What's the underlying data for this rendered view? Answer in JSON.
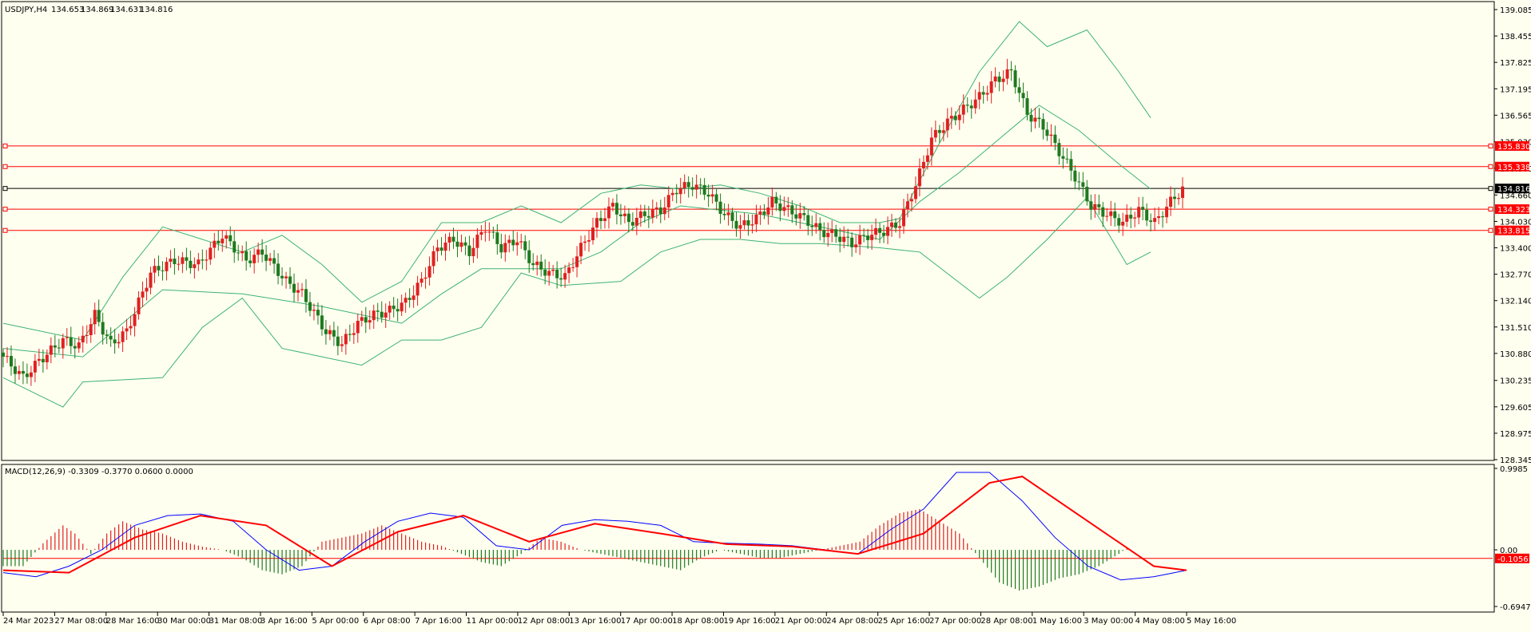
{
  "chart_data": [
    {
      "type": "candlestick",
      "title": "USDJPY,H4",
      "ohlc_readout": [
        "134.653",
        "134.869",
        "134.631",
        "134.816"
      ],
      "y_ticks": [
        "139.085",
        "138.455",
        "137.825",
        "137.195",
        "136.565",
        "135.930",
        "135.300",
        "134.660",
        "134.030",
        "133.400",
        "132.770",
        "132.140",
        "131.510",
        "130.880",
        "130.235",
        "129.605",
        "128.975",
        "128.345"
      ],
      "ylim": [
        128.345,
        139.085
      ],
      "x_ticks": [
        "24 Mar 2023",
        "27 Mar 08:00",
        "28 Mar 16:00",
        "30 Mar 00:00",
        "31 Mar 08:00",
        "3 Apr 16:00",
        "5 Apr 00:00",
        "6 Apr 08:00",
        "7 Apr 16:00",
        "11 Apr 00:00",
        "12 Apr 08:00",
        "13 Apr 16:00",
        "17 Apr 00:00",
        "18 Apr 08:00",
        "19 Apr 16:00",
        "21 Apr 00:00",
        "24 Apr 08:00",
        "25 Apr 16:00",
        "27 Apr 00:00",
        "28 Apr 08:00",
        "1 May 16:00",
        "3 May 00:00",
        "4 May 08:00",
        "5 May 16:00"
      ],
      "horizontal_levels": [
        {
          "value": 135.83,
          "label": "135.830",
          "color": "#ff0000"
        },
        {
          "value": 135.338,
          "label": "135.338",
          "color": "#ff0000"
        },
        {
          "value": 134.816,
          "label": "134.816",
          "color": "#000000"
        },
        {
          "value": 134.323,
          "label": "134.323",
          "color": "#ff0000"
        },
        {
          "value": 133.815,
          "label": "133.815",
          "color": "#ff0000"
        }
      ],
      "close_path": [
        [
          0,
          130.9
        ],
        [
          6,
          130.3
        ],
        [
          10,
          130.7
        ],
        [
          16,
          131.2
        ],
        [
          20,
          131.05
        ],
        [
          24,
          131.8
        ],
        [
          28,
          131.1
        ],
        [
          32,
          131.4
        ],
        [
          38,
          132.8
        ],
        [
          44,
          133.1
        ],
        [
          50,
          133.0
        ],
        [
          56,
          133.7
        ],
        [
          62,
          133.1
        ],
        [
          66,
          133.3
        ],
        [
          72,
          132.6
        ],
        [
          76,
          132.3
        ],
        [
          82,
          131.4
        ],
        [
          86,
          131.1
        ],
        [
          90,
          131.6
        ],
        [
          94,
          131.8
        ],
        [
          98,
          131.9
        ],
        [
          102,
          132.1
        ],
        [
          106,
          132.6
        ],
        [
          110,
          133.4
        ],
        [
          114,
          133.6
        ],
        [
          118,
          133.3
        ],
        [
          122,
          133.9
        ],
        [
          126,
          133.4
        ],
        [
          130,
          133.6
        ],
        [
          134,
          133.0
        ],
        [
          138,
          132.8
        ],
        [
          142,
          132.7
        ],
        [
          146,
          133.4
        ],
        [
          150,
          134.0
        ],
        [
          154,
          134.4
        ],
        [
          158,
          134.0
        ],
        [
          162,
          134.2
        ],
        [
          166,
          134.3
        ],
        [
          170,
          134.8
        ],
        [
          174,
          134.9
        ],
        [
          178,
          134.7
        ],
        [
          182,
          134.2
        ],
        [
          186,
          133.9
        ],
        [
          190,
          134.1
        ],
        [
          194,
          134.5
        ],
        [
          198,
          134.3
        ],
        [
          202,
          134.1
        ],
        [
          206,
          133.8
        ],
        [
          210,
          133.7
        ],
        [
          214,
          133.5
        ],
        [
          218,
          133.7
        ],
        [
          222,
          133.8
        ],
        [
          226,
          134.0
        ],
        [
          230,
          134.9
        ],
        [
          234,
          136.0
        ],
        [
          238,
          136.4
        ],
        [
          242,
          136.7
        ],
        [
          246,
          137.0
        ],
        [
          250,
          137.4
        ],
        [
          254,
          137.6
        ],
        [
          258,
          136.6
        ],
        [
          262,
          136.3
        ],
        [
          266,
          135.7
        ],
        [
          270,
          135.1
        ],
        [
          274,
          134.4
        ],
        [
          278,
          134.2
        ],
        [
          282,
          134.0
        ],
        [
          286,
          134.3
        ],
        [
          290,
          134.0
        ],
        [
          294,
          134.5
        ],
        [
          297,
          134.8
        ]
      ],
      "bollinger_upper_path": [
        [
          0,
          131.6
        ],
        [
          20,
          131.2
        ],
        [
          30,
          132.7
        ],
        [
          40,
          133.9
        ],
        [
          50,
          133.6
        ],
        [
          60,
          133.3
        ],
        [
          70,
          133.7
        ],
        [
          80,
          133.0
        ],
        [
          90,
          132.1
        ],
        [
          100,
          132.6
        ],
        [
          110,
          134.0
        ],
        [
          120,
          134.0
        ],
        [
          130,
          134.4
        ],
        [
          140,
          134.0
        ],
        [
          150,
          134.7
        ],
        [
          160,
          134.9
        ],
        [
          170,
          134.8
        ],
        [
          180,
          134.9
        ],
        [
          190,
          134.7
        ],
        [
          200,
          134.4
        ],
        [
          210,
          134.0
        ],
        [
          220,
          134.0
        ],
        [
          225,
          134.1
        ],
        [
          235,
          135.9
        ],
        [
          245,
          137.6
        ],
        [
          255,
          138.8
        ],
        [
          262,
          138.2
        ],
        [
          272,
          138.6
        ],
        [
          280,
          137.6
        ],
        [
          288,
          136.5
        ]
      ],
      "bollinger_middle_path": [
        [
          0,
          131.0
        ],
        [
          20,
          130.8
        ],
        [
          40,
          132.4
        ],
        [
          60,
          132.3
        ],
        [
          80,
          132.0
        ],
        [
          100,
          131.6
        ],
        [
          110,
          132.3
        ],
        [
          120,
          132.9
        ],
        [
          140,
          132.9
        ],
        [
          150,
          133.3
        ],
        [
          160,
          134.0
        ],
        [
          170,
          134.4
        ],
        [
          180,
          134.3
        ],
        [
          190,
          134.2
        ],
        [
          200,
          134.0
        ],
        [
          210,
          133.8
        ],
        [
          220,
          133.6
        ],
        [
          230,
          134.5
        ],
        [
          240,
          135.2
        ],
        [
          250,
          136.0
        ],
        [
          260,
          136.8
        ],
        [
          270,
          136.2
        ],
        [
          280,
          135.4
        ],
        [
          288,
          134.8
        ]
      ],
      "bollinger_lower_path": [
        [
          0,
          130.3
        ],
        [
          15,
          129.6
        ],
        [
          20,
          130.2
        ],
        [
          40,
          130.3
        ],
        [
          50,
          131.5
        ],
        [
          60,
          132.2
        ],
        [
          70,
          131.0
        ],
        [
          80,
          130.8
        ],
        [
          90,
          130.6
        ],
        [
          100,
          131.2
        ],
        [
          110,
          131.2
        ],
        [
          120,
          131.5
        ],
        [
          130,
          132.8
        ],
        [
          140,
          132.5
        ],
        [
          155,
          132.6
        ],
        [
          165,
          133.3
        ],
        [
          175,
          133.6
        ],
        [
          185,
          133.6
        ],
        [
          195,
          133.5
        ],
        [
          205,
          133.5
        ],
        [
          220,
          133.4
        ],
        [
          230,
          133.3
        ],
        [
          245,
          132.2
        ],
        [
          252,
          132.7
        ],
        [
          262,
          133.6
        ],
        [
          272,
          134.6
        ],
        [
          282,
          133.0
        ],
        [
          288,
          133.3
        ]
      ]
    },
    {
      "type": "macd",
      "label": "MACD(12,26,9) -0.3309 -0.3770 0.0600 0.0000",
      "y_ticks": [
        "0.9985",
        "0.00",
        "-0.6947"
      ],
      "current_level": "-0.1056",
      "ylim": [
        -0.6947,
        0.9985
      ],
      "histogram": [
        [
          0,
          -0.2
        ],
        [
          5,
          -0.2
        ],
        [
          10,
          0.08
        ],
        [
          15,
          0.3
        ],
        [
          18,
          0.2
        ],
        [
          22,
          -0.05
        ],
        [
          26,
          0.2
        ],
        [
          30,
          0.35
        ],
        [
          35,
          0.25
        ],
        [
          40,
          0.2
        ],
        [
          45,
          0.1
        ],
        [
          50,
          0.04
        ],
        [
          55,
          0.0
        ],
        [
          60,
          -0.1
        ],
        [
          65,
          -0.25
        ],
        [
          70,
          -0.3
        ],
        [
          75,
          -0.2
        ],
        [
          80,
          0.1
        ],
        [
          85,
          0.15
        ],
        [
          90,
          0.2
        ],
        [
          95,
          0.3
        ],
        [
          100,
          0.2
        ],
        [
          105,
          0.1
        ],
        [
          110,
          0.05
        ],
        [
          115,
          -0.05
        ],
        [
          120,
          -0.15
        ],
        [
          125,
          -0.2
        ],
        [
          130,
          -0.05
        ],
        [
          135,
          0.15
        ],
        [
          140,
          0.1
        ],
        [
          145,
          0.0
        ],
        [
          150,
          -0.05
        ],
        [
          155,
          -0.1
        ],
        [
          160,
          -0.15
        ],
        [
          165,
          -0.2
        ],
        [
          170,
          -0.25
        ],
        [
          175,
          -0.1
        ],
        [
          180,
          0.0
        ],
        [
          185,
          -0.05
        ],
        [
          190,
          -0.1
        ],
        [
          195,
          -0.1
        ],
        [
          200,
          -0.05
        ],
        [
          205,
          0.0
        ],
        [
          210,
          0.05
        ],
        [
          215,
          0.1
        ],
        [
          220,
          0.3
        ],
        [
          225,
          0.45
        ],
        [
          230,
          0.5
        ],
        [
          235,
          0.35
        ],
        [
          240,
          0.2
        ],
        [
          245,
          -0.1
        ],
        [
          250,
          -0.4
        ],
        [
          255,
          -0.5
        ],
        [
          260,
          -0.45
        ],
        [
          265,
          -0.35
        ],
        [
          270,
          -0.3
        ],
        [
          275,
          -0.2
        ],
        [
          280,
          -0.05
        ],
        [
          283,
          0.06
        ]
      ],
      "main_path": [
        [
          0,
          -0.28
        ],
        [
          5,
          -0.33
        ],
        [
          10,
          -0.2
        ],
        [
          15,
          0.0
        ],
        [
          20,
          0.3
        ],
        [
          25,
          0.42
        ],
        [
          30,
          0.44
        ],
        [
          35,
          0.35
        ],
        [
          40,
          0.0
        ],
        [
          45,
          -0.25
        ],
        [
          50,
          -0.2
        ],
        [
          55,
          0.1
        ],
        [
          60,
          0.35
        ],
        [
          65,
          0.45
        ],
        [
          70,
          0.4
        ],
        [
          75,
          0.05
        ],
        [
          80,
          0.0
        ],
        [
          85,
          0.3
        ],
        [
          90,
          0.37
        ],
        [
          95,
          0.35
        ],
        [
          100,
          0.3
        ],
        [
          105,
          0.1
        ],
        [
          110,
          0.08
        ],
        [
          115,
          0.07
        ],
        [
          120,
          0.05
        ],
        [
          125,
          0.0
        ],
        [
          130,
          -0.05
        ],
        [
          135,
          0.25
        ],
        [
          140,
          0.5
        ],
        [
          145,
          0.95
        ],
        [
          150,
          0.95
        ],
        [
          155,
          0.6
        ],
        [
          160,
          0.15
        ],
        [
          165,
          -0.2
        ],
        [
          170,
          -0.37
        ],
        [
          175,
          -0.33
        ],
        [
          180,
          -0.25
        ]
      ],
      "signal_path": [
        [
          0,
          -0.25
        ],
        [
          10,
          -0.28
        ],
        [
          20,
          0.15
        ],
        [
          30,
          0.42
        ],
        [
          40,
          0.3
        ],
        [
          50,
          -0.2
        ],
        [
          60,
          0.22
        ],
        [
          70,
          0.42
        ],
        [
          80,
          0.1
        ],
        [
          90,
          0.32
        ],
        [
          100,
          0.2
        ],
        [
          110,
          0.07
        ],
        [
          120,
          0.04
        ],
        [
          130,
          -0.05
        ],
        [
          140,
          0.2
        ],
        [
          150,
          0.82
        ],
        [
          155,
          0.9
        ],
        [
          165,
          0.35
        ],
        [
          175,
          -0.2
        ],
        [
          180,
          -0.25
        ]
      ]
    }
  ]
}
